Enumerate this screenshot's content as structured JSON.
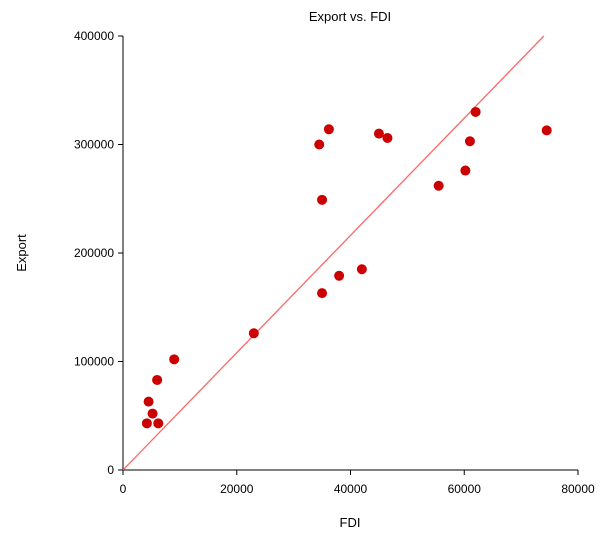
{
  "chart_data": {
    "type": "scatter",
    "title": "Export vs. FDI",
    "xlabel": "FDI",
    "ylabel": "Export",
    "xlim": [
      0,
      80000
    ],
    "ylim": [
      0,
      400000
    ],
    "x_ticks": [
      0,
      20000,
      40000,
      60000,
      80000
    ],
    "y_ticks": [
      0,
      100000,
      200000,
      300000,
      400000
    ],
    "x_tick_labels": [
      "0",
      "20000",
      "40000",
      "60000",
      "80000"
    ],
    "y_tick_labels": [
      "0",
      "100000",
      "200000",
      "300000",
      "400000"
    ],
    "grid": false,
    "point_color": "#cc0000",
    "reference_line": {
      "color": "#ff6666",
      "from": [
        0,
        0
      ],
      "to": [
        74000,
        400000
      ]
    },
    "points": [
      {
        "x": 4200,
        "y": 43000
      },
      {
        "x": 4500,
        "y": 63000
      },
      {
        "x": 5200,
        "y": 52000
      },
      {
        "x": 6000,
        "y": 83000
      },
      {
        "x": 6200,
        "y": 43000
      },
      {
        "x": 9000,
        "y": 102000
      },
      {
        "x": 23000,
        "y": 126000
      },
      {
        "x": 34500,
        "y": 300000
      },
      {
        "x": 35000,
        "y": 249000
      },
      {
        "x": 35000,
        "y": 163000
      },
      {
        "x": 36200,
        "y": 314000
      },
      {
        "x": 38000,
        "y": 179000
      },
      {
        "x": 42000,
        "y": 185000
      },
      {
        "x": 45000,
        "y": 310000
      },
      {
        "x": 46500,
        "y": 306000
      },
      {
        "x": 55500,
        "y": 262000
      },
      {
        "x": 60200,
        "y": 276000
      },
      {
        "x": 61000,
        "y": 303000
      },
      {
        "x": 62000,
        "y": 330000
      },
      {
        "x": 74500,
        "y": 313000
      }
    ]
  }
}
